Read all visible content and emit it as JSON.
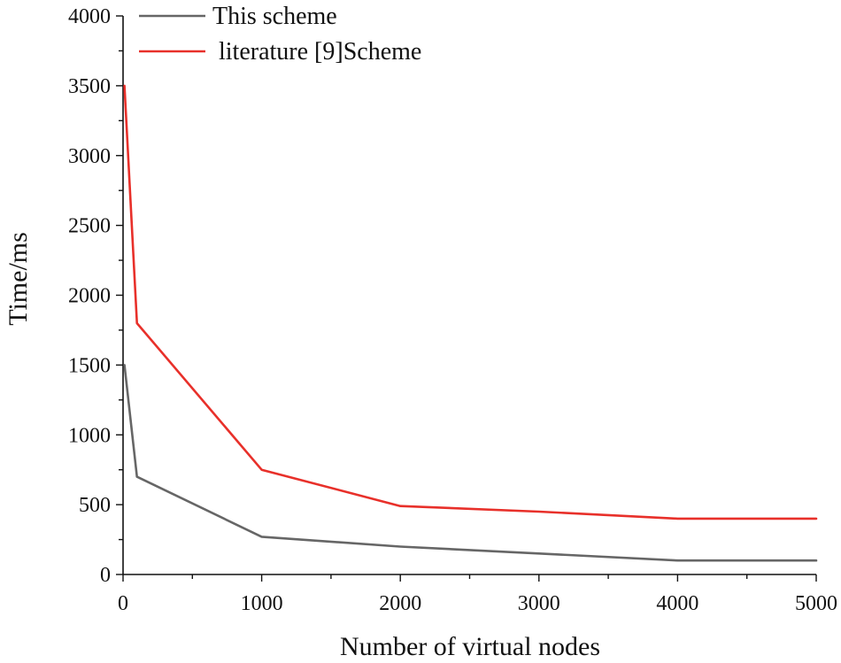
{
  "chart_data": {
    "type": "line",
    "title": "",
    "xlabel": "Number of virtual nodes",
    "ylabel": "Time/ms",
    "xlim": [
      0,
      5000
    ],
    "ylim": [
      0,
      4000
    ],
    "x_ticks": [
      0,
      1000,
      2000,
      3000,
      4000,
      5000
    ],
    "y_ticks": [
      0,
      500,
      1000,
      1500,
      2000,
      2500,
      3000,
      3500,
      4000
    ],
    "x_minor_step": 500,
    "y_minor_step": 250,
    "grid": false,
    "legend_position": "top-left",
    "series": [
      {
        "name": "This scheme",
        "color": "#666666",
        "x": [
          10,
          100,
          1000,
          2000,
          3000,
          4000,
          5000
        ],
        "y": [
          1500,
          700,
          270,
          200,
          150,
          100,
          100
        ]
      },
      {
        "name": "literature [9]Scheme",
        "color": "#e8302a",
        "x": [
          10,
          100,
          1000,
          2000,
          3000,
          4000,
          5000
        ],
        "y": [
          3500,
          1800,
          750,
          490,
          450,
          400,
          400
        ]
      }
    ]
  }
}
